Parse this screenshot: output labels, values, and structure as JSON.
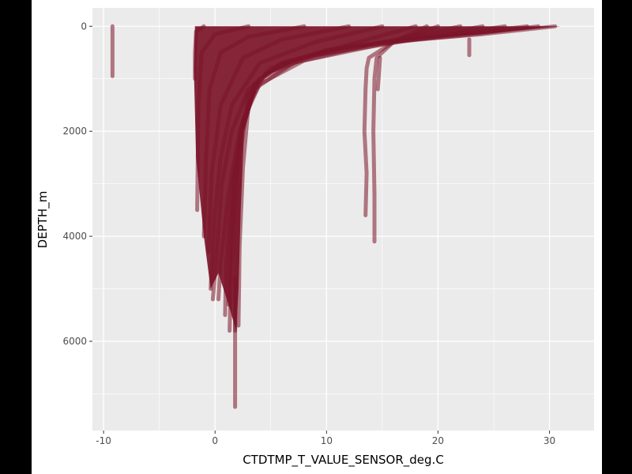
{
  "chart_data": {
    "type": "line",
    "title": "",
    "xlabel": "CTDTMP_T_VALUE_SENSOR_deg.C",
    "ylabel": "DEPTH_m",
    "xlim": [
      -11,
      34
    ],
    "ylim": [
      7700,
      -350
    ],
    "y_reversed": true,
    "xticks": [
      -10,
      0,
      10,
      20,
      30
    ],
    "yticks": [
      0,
      2000,
      4000,
      6000
    ],
    "grid": true,
    "legend": "none",
    "colors": {
      "line": "#7b1428",
      "panel_background": "#ebebeb",
      "grid": "#ffffff",
      "tick_text": "#4d4d4d"
    },
    "series": [
      {
        "x": [
          30.5,
          24,
          15,
          8,
          4,
          2.5,
          1.8,
          1.5,
          1.3,
          1.2
        ],
        "y": [
          0,
          150,
          300,
          600,
          1000,
          1800,
          2800,
          3800,
          4600,
          5300
        ]
      },
      {
        "x": [
          29,
          22,
          12,
          6,
          3.5,
          2.4,
          1.9,
          1.6,
          1.4,
          1.3
        ],
        "y": [
          0,
          180,
          380,
          700,
          1100,
          2000,
          3000,
          4000,
          5000,
          5800
        ]
      },
      {
        "x": [
          28,
          20,
          10,
          5,
          3,
          2.2,
          1.9,
          1.8
        ],
        "y": [
          0,
          200,
          450,
          800,
          1300,
          2500,
          4000,
          5800
        ]
      },
      {
        "x": [
          26,
          18,
          9,
          4.5,
          3,
          2.5,
          2.2,
          2.1
        ],
        "y": [
          0,
          250,
          550,
          900,
          1500,
          2700,
          4200,
          5700
        ]
      },
      {
        "x": [
          24,
          16,
          8,
          4,
          2.5,
          1.6,
          1.0,
          0.9
        ],
        "y": [
          0,
          300,
          650,
          1100,
          1800,
          3000,
          4500,
          5500
        ]
      },
      {
        "x": [
          22,
          14,
          7,
          3.5,
          2.2,
          1.2,
          0.5,
          0.3
        ],
        "y": [
          0,
          350,
          700,
          1200,
          2000,
          3200,
          4500,
          5200
        ]
      },
      {
        "x": [
          18,
          12,
          6,
          3,
          1.5,
          0.6,
          0.2,
          -0.2
        ],
        "y": [
          0,
          350,
          700,
          1200,
          2000,
          3000,
          4200,
          5200
        ]
      },
      {
        "x": [
          15,
          9,
          4,
          1.5,
          0.5,
          0,
          -0.4
        ],
        "y": [
          0,
          300,
          700,
          1500,
          2500,
          3500,
          5000
        ]
      },
      {
        "x": [
          12,
          6,
          2.5,
          0.5,
          -0.3,
          -0.6
        ],
        "y": [
          0,
          250,
          600,
          1500,
          2800,
          4300
        ]
      },
      {
        "x": [
          8,
          3,
          0.5,
          -0.5,
          -0.8,
          -1.0
        ],
        "y": [
          0,
          200,
          500,
          1200,
          2500,
          4000
        ]
      },
      {
        "x": [
          3,
          0,
          -1.2,
          -1.5,
          -1.6
        ],
        "y": [
          0,
          150,
          500,
          1500,
          3500
        ]
      },
      {
        "x": [
          -1.0,
          -1.7,
          -1.8,
          -1.8
        ],
        "y": [
          0,
          100,
          500,
          1000
        ]
      },
      {
        "x": [
          1.8,
          1.8,
          1.8,
          1.8
        ],
        "y": [
          4800,
          5800,
          6700,
          7250
        ]
      },
      {
        "x": [
          19,
          16,
          13.8,
          13.6,
          13.5,
          13.4,
          13.6,
          13.5
        ],
        "y": [
          0,
          300,
          600,
          800,
          1200,
          2000,
          2800,
          3600
        ]
      },
      {
        "x": [
          20,
          16,
          14.5,
          14.3,
          14.2,
          14.3,
          14.3
        ],
        "y": [
          0,
          300,
          600,
          1000,
          2000,
          3200,
          4100
        ]
      },
      {
        "x": [
          14.8,
          14.7,
          14.6
        ],
        "y": [
          600,
          900,
          1200
        ]
      },
      {
        "x": [
          -9.2,
          -9.2
        ],
        "y": [
          0,
          950
        ]
      },
      {
        "x": [
          22.8,
          22.8
        ],
        "y": [
          250,
          550
        ]
      }
    ]
  }
}
